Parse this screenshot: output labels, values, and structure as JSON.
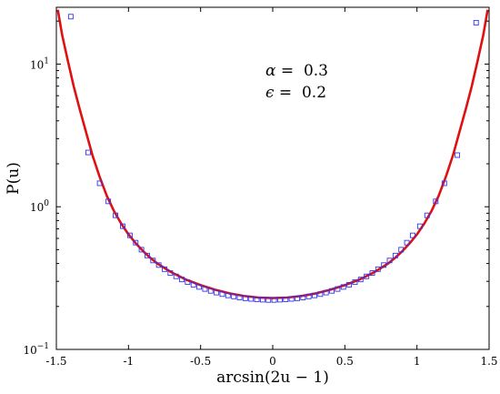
{
  "chart_data": {
    "type": "line",
    "xlabel": "arcsin(2u − 1)",
    "ylabel": "P(u)",
    "xlim": [
      -1.5,
      1.5
    ],
    "ylim": [
      0.1,
      25
    ],
    "yscale": "log",
    "grid": false,
    "x_ticks": [
      -1.5,
      -1,
      -0.5,
      0,
      0.5,
      1,
      1.5
    ],
    "x_tick_labels": [
      "-1.5",
      "-1",
      "-0.5",
      "0",
      "0.5",
      "1",
      "1.5"
    ],
    "y_ticks": [
      0.1,
      1,
      10
    ],
    "y_tick_labels": [
      {
        "base": "10",
        "exp": "−1"
      },
      {
        "base": "10",
        "exp": "0"
      },
      {
        "base": "10",
        "exp": "1"
      }
    ],
    "annotations": [
      {
        "symbol": "α",
        "text": " =  0.3"
      },
      {
        "symbol": "ϵ",
        "text": " =  0.2"
      }
    ],
    "series": [
      {
        "kind": "line",
        "color": "#dd1111",
        "points": [
          [
            -1.49,
            24.0
          ],
          [
            -1.46,
            16.0
          ],
          [
            -1.42,
            10.5
          ],
          [
            -1.38,
            7.0
          ],
          [
            -1.34,
            4.9
          ],
          [
            -1.3,
            3.5
          ],
          [
            -1.25,
            2.3
          ],
          [
            -1.2,
            1.62
          ],
          [
            -1.15,
            1.19
          ],
          [
            -1.1,
            0.93
          ],
          [
            -1.05,
            0.76
          ],
          [
            -1.0,
            0.64
          ],
          [
            -0.95,
            0.555
          ],
          [
            -0.9,
            0.49
          ],
          [
            -0.85,
            0.44
          ],
          [
            -0.8,
            0.4
          ],
          [
            -0.7,
            0.346
          ],
          [
            -0.6,
            0.308
          ],
          [
            -0.5,
            0.282
          ],
          [
            -0.4,
            0.262
          ],
          [
            -0.3,
            0.247
          ],
          [
            -0.2,
            0.237
          ],
          [
            -0.1,
            0.231
          ],
          [
            0.0,
            0.229
          ],
          [
            0.1,
            0.231
          ],
          [
            0.2,
            0.237
          ],
          [
            0.3,
            0.247
          ],
          [
            0.4,
            0.262
          ],
          [
            0.5,
            0.282
          ],
          [
            0.6,
            0.308
          ],
          [
            0.7,
            0.346
          ],
          [
            0.8,
            0.4
          ],
          [
            0.85,
            0.44
          ],
          [
            0.9,
            0.49
          ],
          [
            0.95,
            0.555
          ],
          [
            1.0,
            0.64
          ],
          [
            1.05,
            0.76
          ],
          [
            1.1,
            0.93
          ],
          [
            1.15,
            1.19
          ],
          [
            1.2,
            1.62
          ],
          [
            1.25,
            2.3
          ],
          [
            1.3,
            3.5
          ],
          [
            1.34,
            4.9
          ],
          [
            1.38,
            7.0
          ],
          [
            1.42,
            10.5
          ],
          [
            1.46,
            16.0
          ],
          [
            1.49,
            24.0
          ]
        ]
      },
      {
        "kind": "markers",
        "marker": "square",
        "color": "#3333ee",
        "points": [
          [
            -1.4,
            21.5
          ],
          [
            -1.28,
            2.4
          ],
          [
            -1.2,
            1.46
          ],
          [
            -1.14,
            1.09
          ],
          [
            -1.09,
            0.87
          ],
          [
            -1.04,
            0.73
          ],
          [
            -0.99,
            0.63
          ],
          [
            -0.95,
            0.56
          ],
          [
            -0.91,
            0.5
          ],
          [
            -0.87,
            0.455
          ],
          [
            -0.83,
            0.42
          ],
          [
            -0.79,
            0.39
          ],
          [
            -0.75,
            0.365
          ],
          [
            -0.71,
            0.343
          ],
          [
            -0.67,
            0.325
          ],
          [
            -0.63,
            0.309
          ],
          [
            -0.59,
            0.296
          ],
          [
            -0.55,
            0.284
          ],
          [
            -0.51,
            0.274
          ],
          [
            -0.47,
            0.265
          ],
          [
            -0.43,
            0.257
          ],
          [
            -0.39,
            0.25
          ],
          [
            -0.35,
            0.244
          ],
          [
            -0.31,
            0.239
          ],
          [
            -0.27,
            0.235
          ],
          [
            -0.23,
            0.231
          ],
          [
            -0.19,
            0.228
          ],
          [
            -0.15,
            0.226
          ],
          [
            -0.11,
            0.224
          ],
          [
            -0.07,
            0.223
          ],
          [
            -0.03,
            0.222
          ],
          [
            0.01,
            0.222
          ],
          [
            0.05,
            0.223
          ],
          [
            0.09,
            0.224
          ],
          [
            0.13,
            0.226
          ],
          [
            0.17,
            0.228
          ],
          [
            0.21,
            0.231
          ],
          [
            0.25,
            0.235
          ],
          [
            0.29,
            0.239
          ],
          [
            0.33,
            0.244
          ],
          [
            0.37,
            0.25
          ],
          [
            0.41,
            0.257
          ],
          [
            0.45,
            0.265
          ],
          [
            0.49,
            0.274
          ],
          [
            0.53,
            0.284
          ],
          [
            0.57,
            0.296
          ],
          [
            0.61,
            0.309
          ],
          [
            0.65,
            0.325
          ],
          [
            0.69,
            0.343
          ],
          [
            0.73,
            0.365
          ],
          [
            0.77,
            0.39
          ],
          [
            0.81,
            0.42
          ],
          [
            0.85,
            0.455
          ],
          [
            0.89,
            0.5
          ],
          [
            0.93,
            0.56
          ],
          [
            0.97,
            0.63
          ],
          [
            1.02,
            0.73
          ],
          [
            1.07,
            0.87
          ],
          [
            1.13,
            1.09
          ],
          [
            1.19,
            1.46
          ],
          [
            1.28,
            2.3
          ],
          [
            1.41,
            19.5
          ]
        ]
      }
    ]
  }
}
